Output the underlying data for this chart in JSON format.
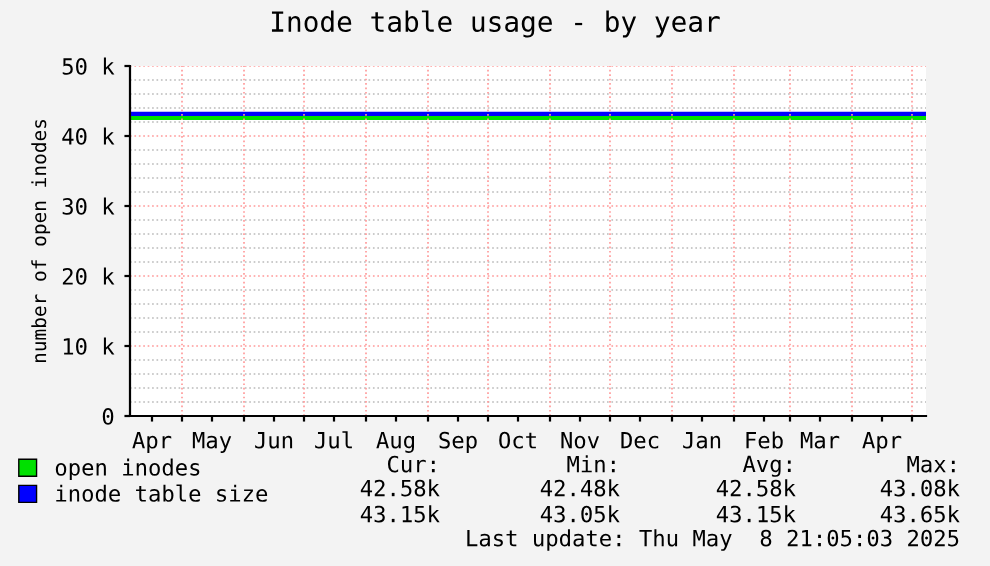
{
  "chart_data": {
    "type": "line",
    "title": "Inode table usage - by year",
    "ylabel": "number of open inodes",
    "x": [
      "2024-04-05",
      "2024-07-01",
      "2024-10-01",
      "2025-01-01",
      "2025-04-01",
      "2025-05-08"
    ],
    "series": [
      {
        "name": "open inodes",
        "color": "#00e000",
        "values": [
          42580,
          42580,
          42580,
          42580,
          42580,
          42580
        ]
      },
      {
        "name": "inode table size",
        "color": "#0000ff",
        "values": [
          43150,
          43150,
          43150,
          43150,
          43150,
          43150
        ]
      }
    ],
    "xlim": [
      "2024-04-05",
      "2025-05-08"
    ],
    "xticks": [
      {
        "value": "2024-04-16",
        "label": "Apr"
      },
      {
        "value": "2024-05-01",
        "label": null
      },
      {
        "value": "2024-05-16",
        "label": "May"
      },
      {
        "value": "2024-06-01",
        "label": null
      },
      {
        "value": "2024-06-16",
        "label": "Jun"
      },
      {
        "value": "2024-07-01",
        "label": null
      },
      {
        "value": "2024-07-16",
        "label": "Jul"
      },
      {
        "value": "2024-08-01",
        "label": null
      },
      {
        "value": "2024-08-16",
        "label": "Aug"
      },
      {
        "value": "2024-09-01",
        "label": null
      },
      {
        "value": "2024-09-16",
        "label": "Sep"
      },
      {
        "value": "2024-10-01",
        "label": null
      },
      {
        "value": "2024-10-16",
        "label": "Oct"
      },
      {
        "value": "2024-11-01",
        "label": null
      },
      {
        "value": "2024-11-16",
        "label": "Nov"
      },
      {
        "value": "2024-12-01",
        "label": null
      },
      {
        "value": "2024-12-16",
        "label": "Dec"
      },
      {
        "value": "2025-01-01",
        "label": null
      },
      {
        "value": "2025-01-16",
        "label": "Jan"
      },
      {
        "value": "2025-02-01",
        "label": null
      },
      {
        "value": "2025-02-16",
        "label": "Feb"
      },
      {
        "value": "2025-03-01",
        "label": null
      },
      {
        "value": "2025-03-16",
        "label": "Mar"
      },
      {
        "value": "2025-04-01",
        "label": null
      },
      {
        "value": "2025-04-16",
        "label": "Apr"
      },
      {
        "value": "2025-05-01",
        "label": null
      }
    ],
    "ylim": [
      0,
      50000
    ],
    "yticks": [
      {
        "value": 0,
        "label": "0"
      },
      {
        "value": 10000,
        "label": "10 k"
      },
      {
        "value": 20000,
        "label": "20 k"
      },
      {
        "value": 30000,
        "label": "30 k"
      },
      {
        "value": 40000,
        "label": "40 k"
      },
      {
        "value": 50000,
        "label": "50 k"
      }
    ],
    "grid": true,
    "legend": "bottom left",
    "marker": "none",
    "line_style": "solid",
    "annotations": [
      "Cur:",
      "Min:",
      "Avg:",
      "Max:",
      "42.58k",
      "42.48k",
      "42.58k",
      "43.08k",
      "43.15k",
      "43.05k",
      "43.15k",
      "43.65k",
      "Last update: Thu May  8 21:05:03 2025"
    ]
  }
}
